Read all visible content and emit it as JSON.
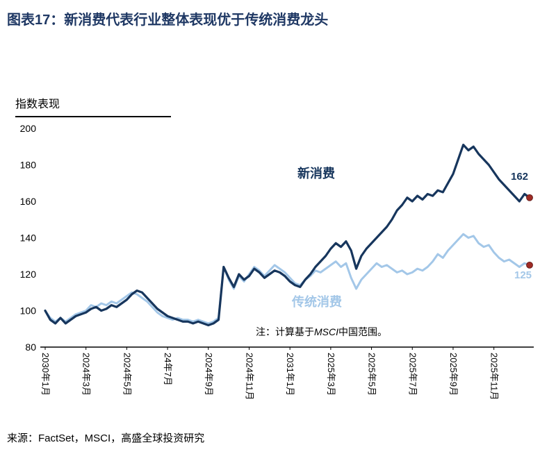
{
  "title": "图表17：新消费代表行业整体表现优于传统消费龙头",
  "y_axis_title": "指数表现",
  "note": {
    "prefix": "注：计算基于",
    "italic": "MSCI",
    "suffix": "中国范围。"
  },
  "source": "来源：FactSet，MSCI，高盛全球投资研究",
  "colors": {
    "title_navy": "#1f3864",
    "new_consumption_navy": "#17365d",
    "traditional_consumption_blue": "#a3c7e8",
    "end_dot_red": "#9e2b25",
    "axis_black": "#000000"
  },
  "chart_data": {
    "type": "line",
    "title": "新消费代表行业整体表现优于传统消费龙头",
    "ylabel": "指数表现",
    "ylim": [
      80,
      200
    ],
    "yticks": [
      80,
      100,
      120,
      140,
      160,
      180,
      200
    ],
    "grid": false,
    "legend_position": "inline labels on plot",
    "x_tick_labels": [
      "2030年1月",
      "2024年3月",
      "2024年5月",
      "24年7月",
      "2024年9月",
      "2024年11月",
      "2031年1月",
      "2025年3月",
      "2025年5月",
      "2025年7月",
      "2025年9月",
      "2025年11月"
    ],
    "x_tick_positions": [
      0,
      8,
      16,
      24,
      32,
      40,
      48,
      56,
      64,
      72,
      80,
      88
    ],
    "end_dot_color": "#9e2b25",
    "series": [
      {
        "name": "新消费",
        "color": "#17365d",
        "end_label": "162",
        "end_value": 162,
        "values": [
          100,
          95,
          93,
          96,
          93,
          95,
          97,
          98,
          99,
          101,
          102,
          100,
          101,
          103,
          102,
          104,
          106,
          109,
          111,
          110,
          107,
          104,
          101,
          99,
          97,
          96,
          95,
          94,
          94,
          93,
          94,
          93,
          92,
          93,
          95,
          124,
          118,
          113,
          120,
          117,
          119,
          123,
          121,
          118,
          120,
          122,
          121,
          119,
          116,
          114,
          113,
          117,
          120,
          124,
          127,
          130,
          134,
          137,
          135,
          138,
          133,
          123,
          130,
          134,
          137,
          140,
          143,
          146,
          150,
          155,
          158,
          162,
          160,
          163,
          161,
          164,
          163,
          166,
          165,
          170,
          175,
          183,
          191,
          188,
          190,
          186,
          183,
          180,
          176,
          172,
          169,
          166,
          163,
          160,
          164,
          162
        ]
      },
      {
        "name": "传统消费",
        "color": "#a3c7e8",
        "end_label": "125",
        "end_value": 125,
        "values": [
          100,
          96,
          94,
          96,
          94,
          96,
          98,
          99,
          100,
          103,
          102,
          104,
          103,
          105,
          104,
          106,
          108,
          110,
          109,
          107,
          105,
          102,
          99,
          97,
          96,
          95,
          96,
          95,
          95,
          94,
          95,
          94,
          93,
          94,
          96,
          124,
          117,
          112,
          119,
          116,
          120,
          124,
          122,
          119,
          122,
          125,
          123,
          121,
          118,
          115,
          114,
          117,
          119,
          122,
          121,
          123,
          125,
          127,
          124,
          126,
          118,
          112,
          117,
          120,
          123,
          126,
          124,
          125,
          123,
          121,
          122,
          120,
          121,
          123,
          122,
          124,
          127,
          131,
          129,
          133,
          136,
          139,
          142,
          140,
          141,
          137,
          135,
          136,
          132,
          129,
          127,
          128,
          126,
          124,
          126,
          125
        ]
      }
    ]
  }
}
